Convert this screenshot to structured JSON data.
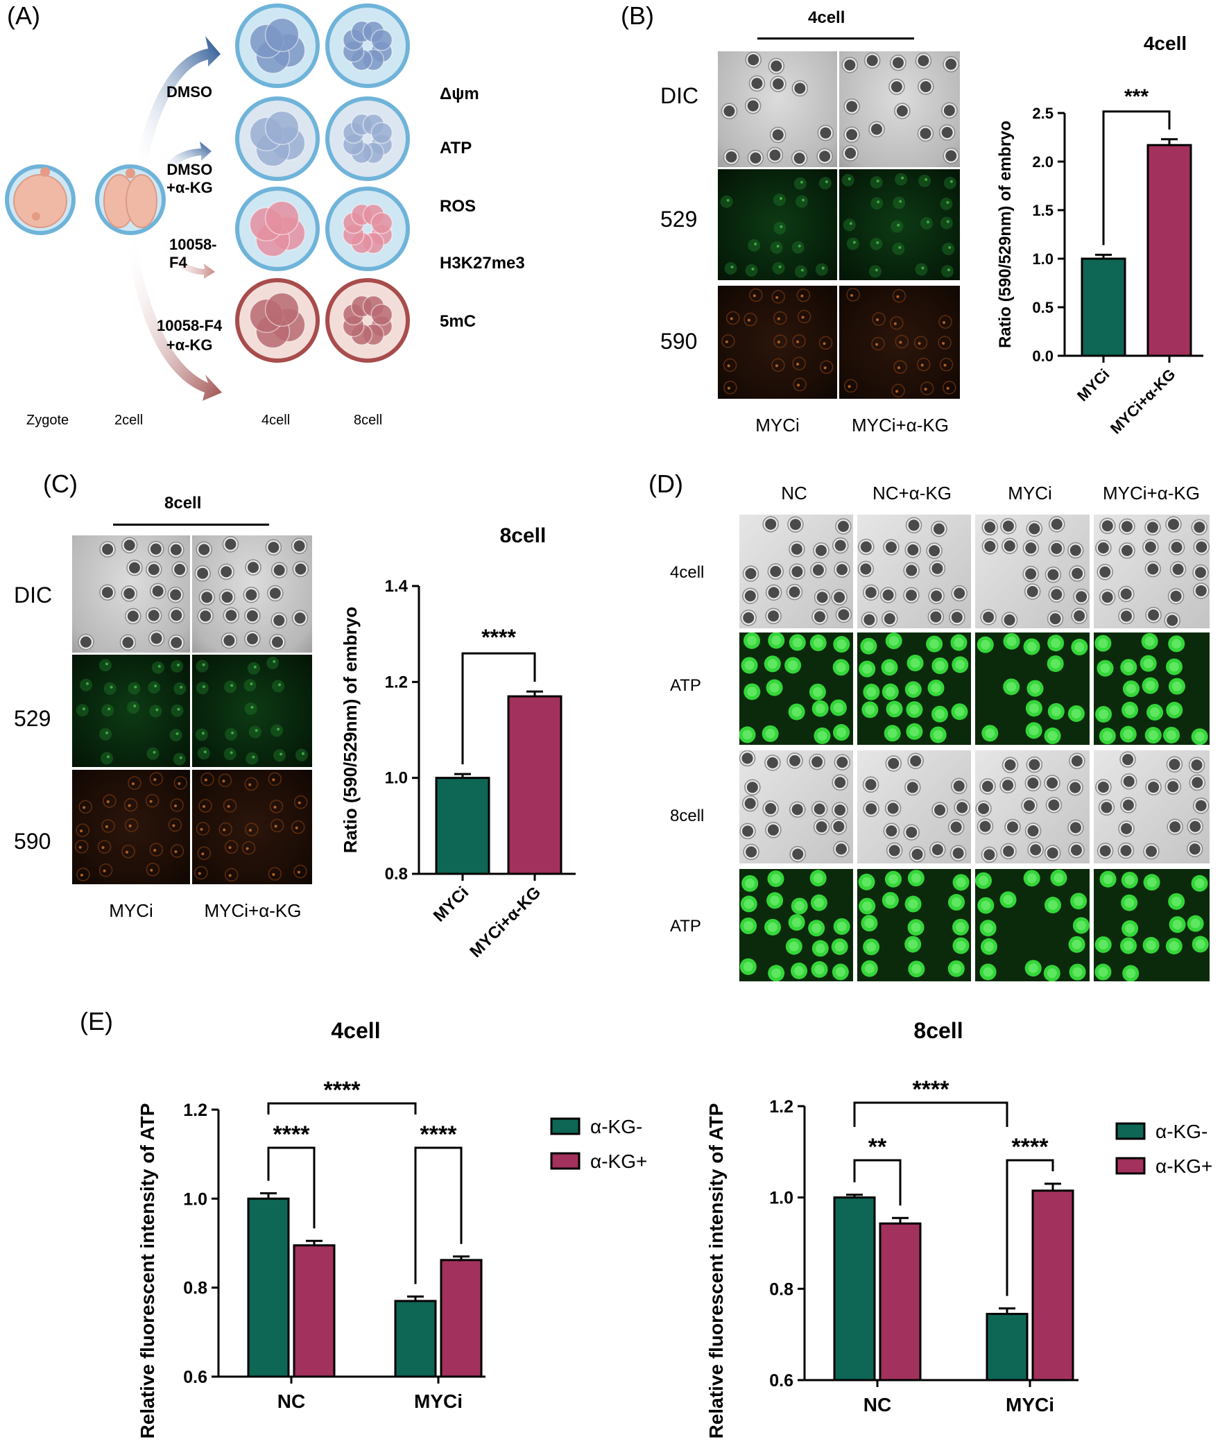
{
  "panels": {
    "A": {
      "label": "(A)",
      "treatments": [
        "DMSO",
        "DMSO\n+α-KG",
        "10058-\nF4",
        "10058-F4\n+α-KG"
      ],
      "assays": [
        "Δψm",
        "ATP",
        "ROS",
        "H3K27me3",
        "5mC"
      ],
      "stages": [
        "Zygote",
        "2cell",
        "4cell",
        "8cell"
      ],
      "colors": {
        "embryo_pink": "#f0b9a6",
        "shell_blue": "#6fb3d9",
        "dmso": "#7b96c4",
        "dmso_akg": "#9aaed2",
        "f4": "#e48fa0",
        "f4_akg": "#b96b72"
      }
    },
    "B": {
      "label": "(B)",
      "header": "4cell",
      "rows": [
        "DIC",
        "529",
        "590"
      ],
      "cols": [
        "MYCi",
        "MYCi+α-KG"
      ]
    },
    "C": {
      "label": "(C)",
      "header": "8cell",
      "rows": [
        "DIC",
        "529",
        "590"
      ],
      "cols": [
        "MYCi",
        "MYCi+α-KG"
      ]
    },
    "D": {
      "label": "(D)",
      "cols": [
        "NC",
        "NC+α-KG",
        "MYCi",
        "MYCi+α-KG"
      ],
      "rows": [
        "4cell",
        "ATP",
        "8cell",
        "ATP"
      ]
    },
    "E": {
      "label": "(E)"
    }
  },
  "chart_data": [
    {
      "id": "B",
      "type": "bar",
      "title": "4cell",
      "ylabel": "Ratio (590/529nm) of embryo",
      "categories": [
        "MYCi",
        "MYCi+α-KG"
      ],
      "values": [
        1.0,
        2.17
      ],
      "errors": [
        0.04,
        0.06
      ],
      "colors": [
        "#0e6655",
        "#a3315d"
      ],
      "ylim": [
        0.0,
        2.5
      ],
      "yticks": [
        "0.0",
        "0.5",
        "1.0",
        "1.5",
        "2.0",
        "2.5"
      ],
      "significance": "***"
    },
    {
      "id": "C",
      "type": "bar",
      "title": "8cell",
      "ylabel": "Ratio (590/529nm) of embryo",
      "categories": [
        "MYCi",
        "MYCi+α-KG"
      ],
      "values": [
        1.0,
        1.17
      ],
      "errors": [
        0.008,
        0.01
      ],
      "colors": [
        "#0e6655",
        "#a3315d"
      ],
      "ylim": [
        0.8,
        1.4
      ],
      "yticks": [
        "0.8",
        "1.0",
        "1.2",
        "1.4"
      ],
      "significance": "****"
    },
    {
      "id": "E1",
      "type": "bar",
      "title": "4cell",
      "ylabel": "Relative fluorescent intensity of ATP",
      "categories": [
        "NC",
        "MYCi"
      ],
      "series": [
        {
          "name": "α-KG-",
          "values": [
            1.0,
            0.77
          ],
          "errors": [
            0.012,
            0.01
          ],
          "color": "#0e6655"
        },
        {
          "name": "α-KG+",
          "values": [
            0.895,
            0.862
          ],
          "errors": [
            0.01,
            0.008
          ],
          "color": "#a3315d"
        }
      ],
      "ylim": [
        0.6,
        1.2
      ],
      "yticks": [
        "0.6",
        "0.8",
        "1.0",
        "1.2"
      ],
      "significance": {
        "within_NC": "****",
        "within_MYCi": "****",
        "between_groups": "****"
      }
    },
    {
      "id": "E2",
      "type": "bar",
      "title": "8cell",
      "ylabel": "Relative fluorescent intensity of ATP",
      "categories": [
        "NC",
        "MYCi"
      ],
      "series": [
        {
          "name": "α-KG-",
          "values": [
            1.0,
            0.745
          ],
          "errors": [
            0.006,
            0.012
          ],
          "color": "#0e6655"
        },
        {
          "name": "α-KG+",
          "values": [
            0.943,
            1.015
          ],
          "errors": [
            0.012,
            0.015
          ],
          "color": "#a3315d"
        }
      ],
      "ylim": [
        0.6,
        1.2
      ],
      "yticks": [
        "0.6",
        "0.8",
        "1.0",
        "1.2"
      ],
      "significance": {
        "within_NC": "**",
        "within_MYCi": "****",
        "between_groups": "****"
      }
    }
  ]
}
